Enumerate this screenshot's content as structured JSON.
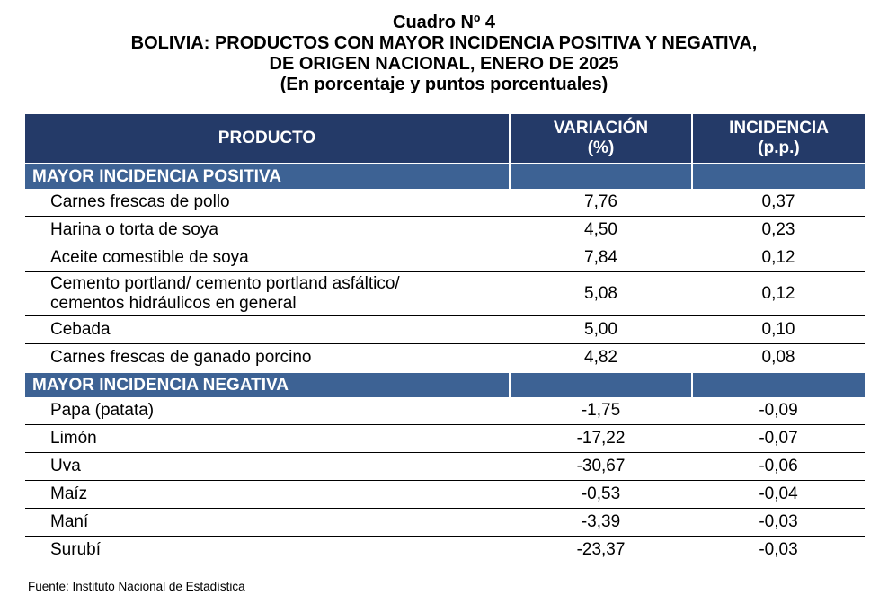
{
  "title": {
    "line1": "Cuadro Nº 4",
    "line2": "BOLIVIA: PRODUCTOS CON MAYOR INCIDENCIA POSITIVA Y NEGATIVA,",
    "line3": "DE ORIGEN NACIONAL, ENERO DE 2025",
    "line4": "(En porcentaje y puntos porcentuales)"
  },
  "header": {
    "producto": "PRODUCTO",
    "variacion_l1": "VARIACIÓN",
    "variacion_l2": "(%)",
    "incidencia_l1": "INCIDENCIA",
    "incidencia_l2": "(p.p.)"
  },
  "sections": [
    {
      "label": "MAYOR INCIDENCIA POSITIVA",
      "rows": [
        {
          "producto": "Carnes frescas de pollo",
          "producto_l2": "",
          "variacion": "7,76",
          "incidencia": "0,37"
        },
        {
          "producto": "Harina o torta de soya",
          "producto_l2": "",
          "variacion": "4,50",
          "incidencia": "0,23"
        },
        {
          "producto": "Aceite comestible de soya",
          "producto_l2": "",
          "variacion": "7,84",
          "incidencia": "0,12"
        },
        {
          "producto": "Cemento portland/ cemento portland asfáltico/",
          "producto_l2": "cementos hidráulicos en general",
          "variacion": "5,08",
          "incidencia": "0,12"
        },
        {
          "producto": "Cebada",
          "producto_l2": "",
          "variacion": "5,00",
          "incidencia": "0,10"
        },
        {
          "producto": "Carnes frescas de ganado porcino",
          "producto_l2": "",
          "variacion": "4,82",
          "incidencia": "0,08"
        }
      ]
    },
    {
      "label": "MAYOR INCIDENCIA NEGATIVA",
      "rows": [
        {
          "producto": "Papa (patata)",
          "producto_l2": "",
          "variacion": "-1,75",
          "incidencia": "-0,09"
        },
        {
          "producto": "Limón",
          "producto_l2": "",
          "variacion": "-17,22",
          "incidencia": "-0,07"
        },
        {
          "producto": "Uva",
          "producto_l2": "",
          "variacion": "-30,67",
          "incidencia": "-0,06"
        },
        {
          "producto": "Maíz",
          "producto_l2": "",
          "variacion": "-0,53",
          "incidencia": "-0,04"
        },
        {
          "producto": "Maní",
          "producto_l2": "",
          "variacion": "-3,39",
          "incidencia": "-0,03"
        },
        {
          "producto": "Surubí",
          "producto_l2": "",
          "variacion": "-23,37",
          "incidencia": "-0,03"
        }
      ]
    }
  ],
  "source": "Fuente: Instituto Nacional de Estadística",
  "colors": {
    "header_bg": "#243a68",
    "section_bg": "#3d6294"
  }
}
